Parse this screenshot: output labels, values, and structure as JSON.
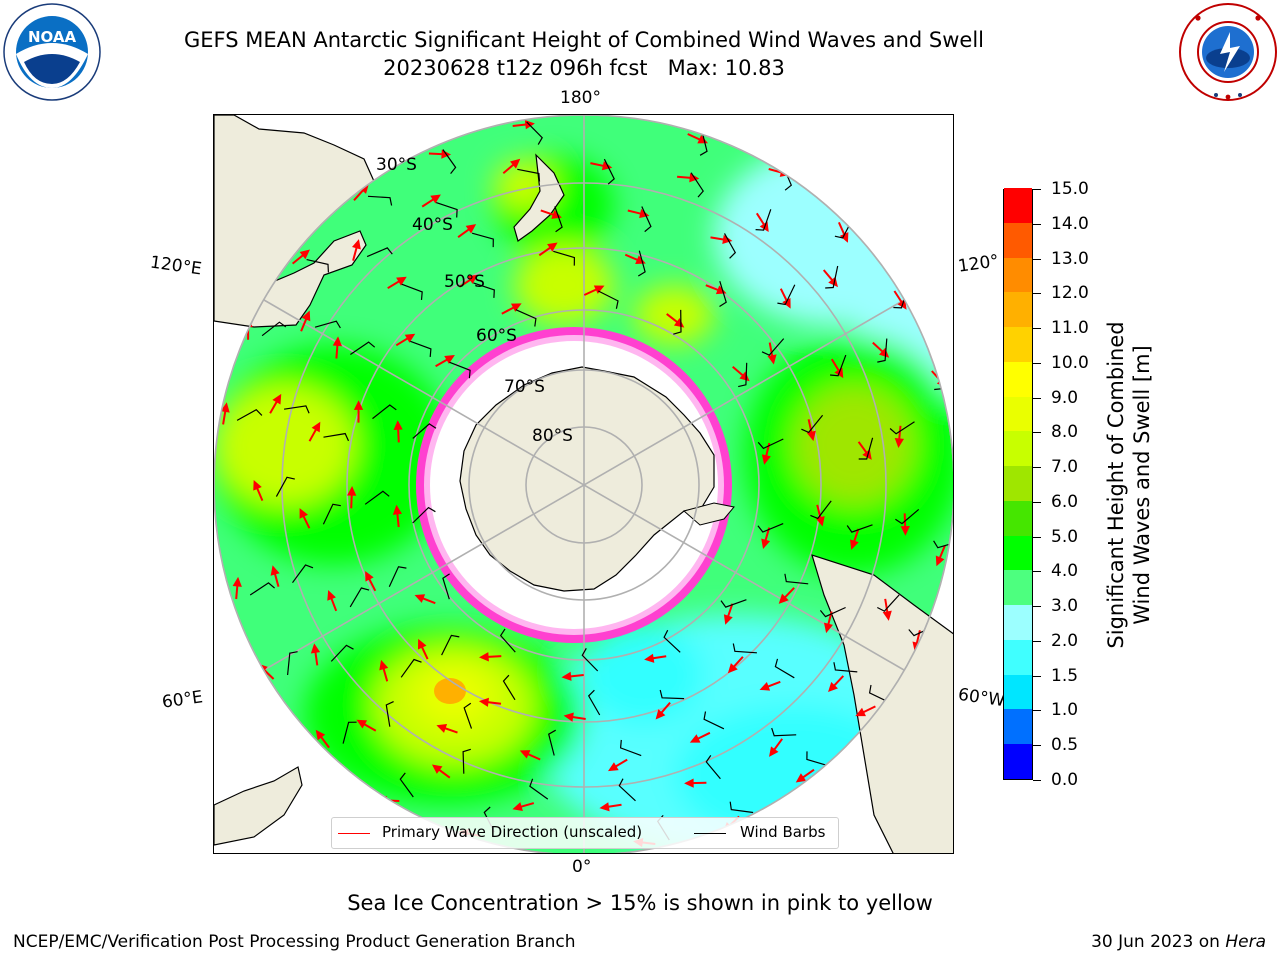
{
  "header": {
    "title_line1": "GEFS MEAN Antarctic Significant Height of Combined Wind Waves and Swell",
    "title_line2": "20230628 t12z 096h fcst   Max: 10.83"
  },
  "logos": {
    "noaa": {
      "text": "NOAA",
      "ring_text": "NATIONAL OCEANIC AND ATMOSPHERIC ADMINISTRATION",
      "bottom_text": "U.S. DEPARTMENT OF COMMERCE"
    },
    "nws": {
      "ring_text": "NATIONAL WEATHER SERVICE"
    }
  },
  "map": {
    "projection": "south-polar-stereographic",
    "longitude_labels": {
      "top": "180°",
      "upper_left": "120°E",
      "upper_right": "120°",
      "lower_left": "60°E",
      "lower_right": "60°W",
      "bottom": "0°"
    },
    "latitude_labels": [
      "30°S",
      "40°S",
      "50°S",
      "60°S",
      "70°S",
      "80°S"
    ],
    "colors": {
      "land": "#eeecdc",
      "ice_shelf": "#ffffff",
      "sea_ice": "#ff40d0",
      "gridline": "#b0b0b0"
    }
  },
  "legend": {
    "items": [
      {
        "label": "Primary Wave Direction (unscaled)",
        "color": "#ff0000"
      },
      {
        "label": "Wind Barbs",
        "color": "#000000"
      }
    ]
  },
  "colorbar": {
    "title_line1": "Significant Height of Combined",
    "title_line2": "Wind Waves and Swell [m]",
    "tick_labels": [
      "0.0",
      "0.5",
      "1.0",
      "1.5",
      "2.0",
      "3.0",
      "4.0",
      "5.0",
      "6.0",
      "7.0",
      "8.0",
      "9.0",
      "10.0",
      "11.0",
      "12.0",
      "13.0",
      "14.0",
      "15.0"
    ],
    "colors": [
      "#0000ff",
      "#0070ff",
      "#00e6ff",
      "#40ffff",
      "#9cffff",
      "#4dff7f",
      "#00ff00",
      "#45e600",
      "#9fe600",
      "#c8ff00",
      "#eaff00",
      "#ffff00",
      "#ffd200",
      "#ffb000",
      "#ff8c00",
      "#ff5a00",
      "#ff0000"
    ]
  },
  "note": "Sea Ice Concentration > 15% is shown in pink to yellow",
  "footer": {
    "left": "NCEP/EMC/Verification Post Processing Product Generation Branch",
    "right_prefix": "30 Jun 2023 on ",
    "right_host": "Hera"
  }
}
